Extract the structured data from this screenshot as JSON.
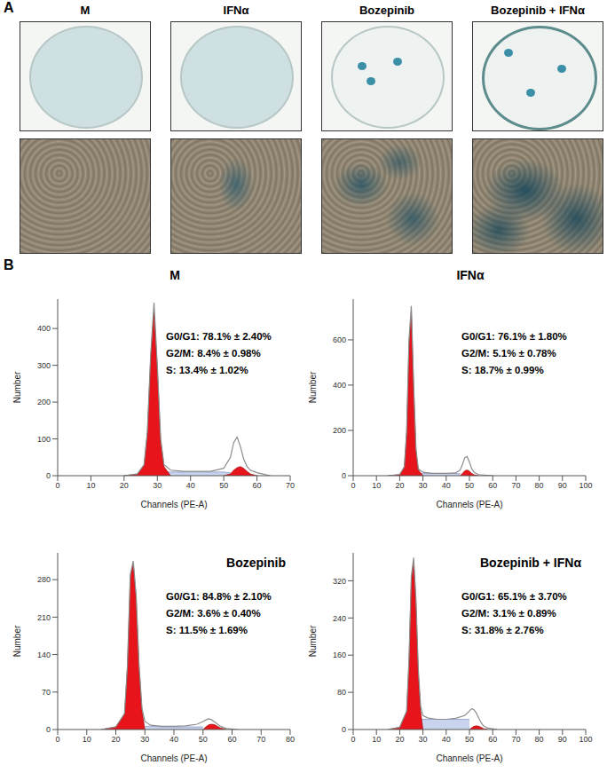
{
  "panel_labels": [
    "A",
    "B"
  ],
  "image_labels": [
    "M",
    "IFNα",
    "Bozepinib",
    "Bozepinib + IFNα"
  ],
  "chart_data": [
    {
      "type": "area",
      "title": "M",
      "x_label": "Channels (PE-A)",
      "y_label": "Number",
      "x": [
        20,
        24,
        26,
        27,
        28,
        29,
        30,
        31,
        32,
        34,
        38,
        42,
        46,
        50,
        52,
        53,
        54,
        55,
        56,
        57,
        58,
        60,
        64
      ],
      "series": [
        {
          "type": "line",
          "color": "#8c8c8c",
          "values": [
            0,
            5,
            30,
            120,
            330,
            470,
            300,
            100,
            30,
            15,
            12,
            12,
            12,
            20,
            50,
            90,
            105,
            80,
            45,
            25,
            15,
            8,
            0
          ]
        },
        {
          "type": "area",
          "name": "S",
          "color": "#c9d3ee",
          "values": [
            null,
            null,
            null,
            null,
            null,
            null,
            null,
            8,
            10,
            10,
            10,
            10,
            10,
            10,
            8,
            null,
            null,
            null,
            null,
            null,
            null,
            null,
            null
          ]
        },
        {
          "type": "area",
          "name": "G0/G1",
          "color": "#e8141c",
          "values": [
            0,
            4,
            28,
            115,
            320,
            450,
            290,
            95,
            25,
            0,
            null,
            null,
            null,
            null,
            null,
            null,
            null,
            null,
            null,
            null,
            null,
            null,
            null
          ]
        },
        {
          "type": "area",
          "name": "G2/M",
          "color": "#e8141c",
          "values": [
            null,
            null,
            null,
            null,
            null,
            null,
            null,
            null,
            null,
            null,
            null,
            null,
            null,
            0,
            5,
            15,
            22,
            25,
            20,
            12,
            5,
            0,
            null
          ]
        }
      ],
      "xlim": [
        0,
        70
      ],
      "xticks": [
        0,
        10,
        20,
        30,
        40,
        50,
        60,
        70
      ],
      "ylim": [
        0,
        480
      ],
      "yticks": [
        0,
        100,
        200,
        300,
        400
      ],
      "annotations": [
        "G0/G1: 78.1% ± 2.40%",
        "G2/M: 8.4% ± 0.98%",
        "S: 13.4% ± 1.02%"
      ]
    },
    {
      "type": "area",
      "title": "IFNα",
      "x_label": "Channels (PE-A)",
      "y_label": "Number",
      "x": [
        15,
        20,
        22,
        23,
        24,
        25,
        26,
        27,
        28,
        30,
        34,
        40,
        44,
        46,
        47,
        48,
        49,
        50,
        51,
        52,
        54,
        60
      ],
      "series": [
        {
          "type": "line",
          "color": "#8c8c8c",
          "values": [
            0,
            5,
            40,
            200,
            600,
            750,
            400,
            120,
            30,
            15,
            10,
            10,
            12,
            25,
            50,
            80,
            85,
            60,
            30,
            15,
            5,
            0
          ]
        },
        {
          "type": "area",
          "name": "S",
          "color": "#c9d3ee",
          "values": [
            null,
            null,
            null,
            null,
            null,
            null,
            null,
            null,
            8,
            10,
            10,
            10,
            10,
            8,
            null,
            null,
            null,
            null,
            null,
            null,
            null,
            null
          ]
        },
        {
          "type": "area",
          "name": "G0/G1",
          "color": "#e8141c",
          "values": [
            0,
            5,
            38,
            190,
            580,
            730,
            390,
            110,
            25,
            0,
            null,
            null,
            null,
            null,
            null,
            null,
            null,
            null,
            null,
            null,
            null,
            null
          ]
        },
        {
          "type": "area",
          "name": "G2/M",
          "color": "#e8141c",
          "values": [
            null,
            null,
            null,
            null,
            null,
            null,
            null,
            null,
            null,
            null,
            null,
            null,
            null,
            0,
            10,
            22,
            25,
            20,
            10,
            4,
            0,
            null
          ]
        }
      ],
      "xlim": [
        0,
        100
      ],
      "xticks": [
        0,
        10,
        20,
        30,
        40,
        50,
        60,
        70,
        80,
        90,
        100
      ],
      "ylim": [
        0,
        780
      ],
      "yticks": [
        0,
        200,
        400,
        600
      ],
      "annotations": [
        "G0/G1: 76.1% ± 1.80%",
        "G2/M: 5.1% ± 0.78%",
        "S: 18.7% ± 0.99%"
      ]
    },
    {
      "type": "area",
      "title": "Bozepinib",
      "x_label": "Channels (PE-A)",
      "y_label": "Number",
      "x": [
        15,
        20,
        23,
        24,
        25,
        26,
        27,
        28,
        29,
        30,
        32,
        36,
        40,
        44,
        48,
        50,
        51,
        52,
        53,
        54,
        55,
        56,
        58,
        62
      ],
      "series": [
        {
          "type": "line",
          "color": "#8c8c8c",
          "values": [
            0,
            5,
            30,
            120,
            290,
            315,
            250,
            120,
            40,
            15,
            8,
            6,
            6,
            7,
            10,
            15,
            18,
            20,
            18,
            14,
            10,
            6,
            2,
            0
          ]
        },
        {
          "type": "area",
          "name": "S",
          "color": "#c9d3ee",
          "values": [
            null,
            null,
            null,
            null,
            null,
            null,
            null,
            null,
            null,
            6,
            6,
            5,
            5,
            5,
            5,
            5,
            null,
            null,
            null,
            null,
            null,
            null,
            null,
            null
          ]
        },
        {
          "type": "area",
          "name": "G0/G1",
          "color": "#e8141c",
          "values": [
            0,
            5,
            28,
            115,
            285,
            310,
            245,
            115,
            35,
            0,
            null,
            null,
            null,
            null,
            null,
            null,
            null,
            null,
            null,
            null,
            null,
            null,
            null,
            null
          ]
        },
        {
          "type": "area",
          "name": "G2/M",
          "color": "#e8141c",
          "values": [
            null,
            null,
            null,
            null,
            null,
            null,
            null,
            null,
            null,
            null,
            null,
            null,
            null,
            null,
            null,
            0,
            5,
            9,
            10,
            9,
            6,
            3,
            0,
            null
          ]
        }
      ],
      "xlim": [
        0,
        80
      ],
      "xticks": [
        0,
        10,
        20,
        30,
        40,
        50,
        60,
        70,
        80
      ],
      "ylim": [
        0,
        330
      ],
      "yticks": [
        0,
        70,
        140,
        210,
        280
      ],
      "annotations": [
        "G0/G1: 84.8% ± 2.10%",
        "G2/M: 3.6% ± 0.40%",
        "S: 11.5% ± 1.69%"
      ]
    },
    {
      "type": "area",
      "title": "Bozepinib + IFNα",
      "x_label": "Channels (PE-A)",
      "y_label": "Number",
      "x": [
        15,
        20,
        23,
        24,
        25,
        26,
        27,
        28,
        29,
        30,
        32,
        36,
        40,
        44,
        48,
        50,
        51,
        52,
        53,
        54,
        55,
        56,
        58,
        62
      ],
      "series": [
        {
          "type": "line",
          "color": "#8c8c8c",
          "values": [
            0,
            5,
            40,
            150,
            330,
            370,
            280,
            130,
            50,
            30,
            25,
            22,
            22,
            24,
            30,
            40,
            45,
            42,
            35,
            25,
            15,
            8,
            3,
            0
          ]
        },
        {
          "type": "area",
          "name": "S",
          "color": "#c9d3ee",
          "values": [
            null,
            null,
            null,
            null,
            null,
            null,
            null,
            null,
            22,
            22,
            22,
            22,
            22,
            22,
            22,
            22,
            null,
            null,
            null,
            null,
            null,
            null,
            null,
            null
          ]
        },
        {
          "type": "area",
          "name": "G0/G1",
          "color": "#e8141c",
          "values": [
            0,
            5,
            38,
            145,
            320,
            360,
            270,
            120,
            40,
            0,
            null,
            null,
            null,
            null,
            null,
            null,
            null,
            null,
            null,
            null,
            null,
            null,
            null,
            null
          ]
        },
        {
          "type": "area",
          "name": "G2/M",
          "color": "#e8141c",
          "values": [
            null,
            null,
            null,
            null,
            null,
            null,
            null,
            null,
            null,
            null,
            null,
            null,
            null,
            null,
            null,
            0,
            4,
            7,
            8,
            7,
            5,
            2,
            0,
            null
          ]
        }
      ],
      "xlim": [
        0,
        100
      ],
      "xticks": [
        0,
        10,
        20,
        30,
        40,
        50,
        60,
        70,
        80,
        90,
        100
      ],
      "ylim": [
        0,
        380
      ],
      "yticks": [
        0,
        80,
        160,
        240,
        320
      ],
      "annotations": [
        "G0/G1: 65.1% ± 3.70%",
        "G2/M: 3.1% ± 0.89%",
        "S: 31.8% ± 2.76%"
      ]
    }
  ]
}
